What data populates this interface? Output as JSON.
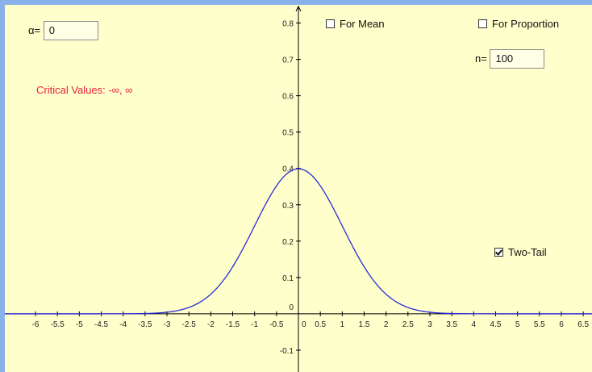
{
  "alpha": {
    "label": "α=",
    "value": "0"
  },
  "n": {
    "label": "n=",
    "value": "100"
  },
  "critical_values": {
    "text": "Critical Values: -∞, ∞"
  },
  "checkboxes": {
    "for_mean": {
      "label": "For Mean",
      "checked": false
    },
    "for_proportion": {
      "label": "For Proportion",
      "checked": false
    },
    "two_tail": {
      "label": "Two-Tail",
      "checked": true
    }
  },
  "colors": {
    "background": "#ffffcc",
    "curve": "#2a2ad8",
    "critical_text": "#e8203c",
    "frame": "#8ab2ea"
  },
  "chart_data": {
    "type": "line",
    "series": [
      {
        "function": "standard normal density",
        "mean": 0,
        "sd": 1
      }
    ],
    "xlim": [
      -6.7,
      6.7
    ],
    "ylim": [
      -0.16,
      0.85
    ],
    "x_ticks": [
      "-6",
      "-5.5",
      "-5",
      "-4.5",
      "-4",
      "-3.5",
      "-3",
      "-2.5",
      "-2",
      "-1.5",
      "-1",
      "-0.5",
      "0",
      "0.5",
      "1",
      "1.5",
      "2",
      "2.5",
      "3",
      "3.5",
      "4",
      "4.5",
      "5",
      "5.5",
      "6",
      "6.5"
    ],
    "y_ticks": [
      "-0.1",
      "0",
      "0.1",
      "0.2",
      "0.3",
      "0.4",
      "0.5",
      "0.6",
      "0.7",
      "0.8"
    ],
    "grid": false
  }
}
